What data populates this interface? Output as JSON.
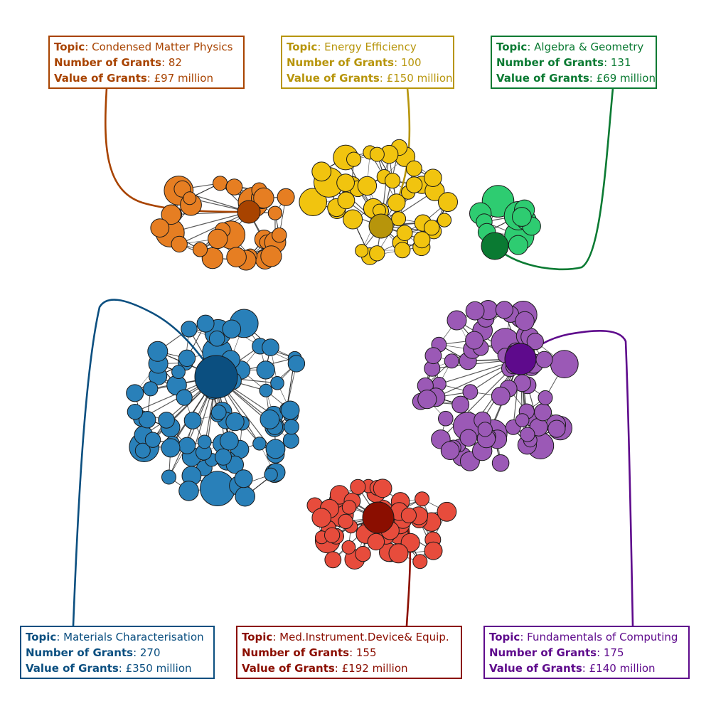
{
  "field_labels": {
    "topic": "Topic",
    "number": "Number of Grants",
    "value": "Value of Grants"
  },
  "clusters": [
    {
      "key": "cmp",
      "topic": "Condensed Matter Physics",
      "number": "82",
      "value": "£97 million",
      "color": "#e67e22",
      "hub_color": "#a84300",
      "label_color": "#a84300"
    },
    {
      "key": "ee",
      "topic": "Energy Efficiency",
      "number": "100",
      "value": "£150 million",
      "color": "#f1c40f",
      "hub_color": "#b7950b",
      "label_color": "#b7950b"
    },
    {
      "key": "ag",
      "topic": "Algebra & Geometry",
      "number": "131",
      "value": "£69 million",
      "color": "#2ecc71",
      "hub_color": "#0a7a32",
      "label_color": "#0a7a32"
    },
    {
      "key": "mc",
      "topic": "Materials Characterisation",
      "number": "270",
      "value": "£350 million",
      "color": "#2980b9",
      "hub_color": "#0b4f80",
      "label_color": "#0b4f80"
    },
    {
      "key": "mid",
      "topic": "Med.Instrument.Device& Equip.",
      "number": "155",
      "value": "£192 million",
      "color": "#e74c3c",
      "hub_color": "#8b0e00",
      "label_color": "#8b0e00"
    },
    {
      "key": "fc",
      "topic": "Fundamentals of Computing",
      "number": "175",
      "value": "£140 million",
      "color": "#9b59b6",
      "hub_color": "#5e0a8c",
      "label_color": "#5e0a8c"
    }
  ]
}
